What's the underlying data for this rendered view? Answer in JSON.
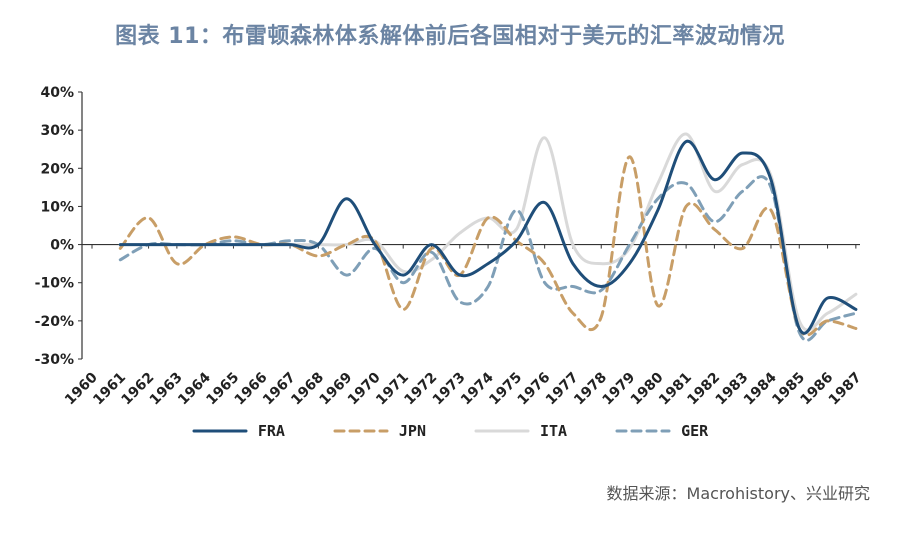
{
  "title": "图表 11：布雷顿森林体系解体前后各国相对于美元的汇率波动情况",
  "source": "数据来源：Macrohistory、兴业研究",
  "chart_data": {
    "type": "line",
    "title": "图表 11：布雷顿森林体系解体前后各国相对于美元的汇率波动情况",
    "xlabel": "",
    "ylabel": "",
    "x": [
      "1960",
      "1961",
      "1962",
      "1963",
      "1964",
      "1965",
      "1966",
      "1967",
      "1968",
      "1969",
      "1970",
      "1971",
      "1972",
      "1973",
      "1974",
      "1975",
      "1976",
      "1977",
      "1978",
      "1979",
      "1980",
      "1981",
      "1982",
      "1983",
      "1984",
      "1985",
      "1986",
      "1987"
    ],
    "ylim": [
      -30,
      40
    ],
    "yticks": [
      40,
      30,
      20,
      10,
      0,
      -10,
      -20,
      -30
    ],
    "ytick_labels": [
      "40%",
      "30%",
      "20%",
      "10%",
      "0%",
      "-10%",
      "-20%",
      "-30%"
    ],
    "grid": false,
    "legend_position": "bottom",
    "series": [
      {
        "name": "ITA",
        "color": "#d9d9d9",
        "dash": "solid",
        "values": [
          null,
          0,
          0,
          0,
          0,
          0,
          0,
          0,
          0,
          0,
          1,
          -7,
          -4,
          3,
          7,
          4,
          28,
          0,
          -5,
          -1,
          16,
          29,
          14,
          21,
          18,
          -20,
          -18,
          -13
        ]
      },
      {
        "name": "GER",
        "color": "#7f9fb7",
        "dash": "dashed",
        "values": [
          null,
          -4,
          0,
          0,
          0,
          1,
          0,
          1,
          0,
          -8,
          -1,
          -10,
          -2,
          -15,
          -11,
          9,
          -10,
          -11,
          -12,
          0,
          12,
          16,
          6,
          14,
          15,
          -23,
          -20,
          -18
        ]
      },
      {
        "name": "JPN",
        "color": "#c89e67",
        "dash": "dashed",
        "values": [
          null,
          -1,
          7,
          -5,
          0,
          2,
          0,
          0,
          -3,
          0,
          1,
          -17,
          -1,
          -8,
          7,
          1,
          -5,
          -18,
          -19,
          23,
          -16,
          10,
          4,
          -1,
          9,
          -22,
          -20,
          -22
        ]
      },
      {
        "name": "FRA",
        "color": "#1f4e79",
        "dash": "solid",
        "values": [
          null,
          0,
          0,
          0,
          0,
          0,
          0,
          0,
          0,
          12,
          0,
          -8,
          0,
          -8,
          -5,
          1,
          11,
          -5,
          -11,
          -5,
          9,
          27,
          17,
          24,
          17,
          -22,
          -14,
          -17
        ]
      }
    ],
    "legend_order": [
      "FRA",
      "JPN",
      "ITA",
      "GER"
    ]
  }
}
